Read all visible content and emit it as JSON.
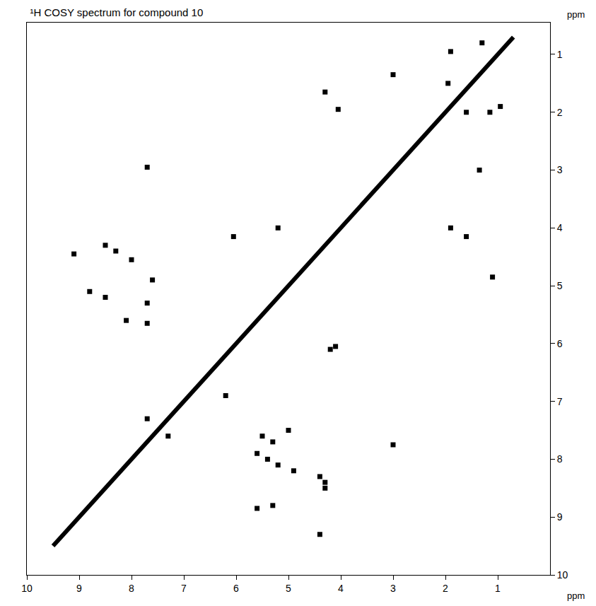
{
  "chart_data": {
    "type": "scatter",
    "title": "¹H COSY spectrum for compound 10",
    "xlabel": "ppm",
    "ylabel": "ppm",
    "xlim": [
      10,
      0
    ],
    "ylim": [
      10,
      0.45
    ],
    "xticks": [
      10,
      9,
      8,
      7,
      6,
      5,
      4,
      3,
      2,
      1
    ],
    "yticks": [
      1,
      2,
      3,
      4,
      5,
      6,
      7,
      8,
      9,
      10
    ],
    "grid": false,
    "series": [
      {
        "type": "line",
        "color": "#000000",
        "x": [
          9.5,
          9.2,
          8.5,
          8.3,
          8.0,
          7.8,
          7.5,
          7.2,
          7.0,
          6.8,
          6.5,
          6.2,
          5.7,
          5.3,
          5.0,
          4.7,
          4.4,
          4.0,
          3.5,
          3.0,
          2.5,
          1.9,
          1.3,
          0.9,
          0.7
        ],
        "values": [
          9.5,
          9.2,
          8.5,
          8.3,
          8.0,
          7.8,
          7.5,
          7.2,
          7.0,
          6.8,
          6.5,
          6.2,
          5.7,
          5.3,
          5.0,
          4.7,
          4.4,
          4.0,
          3.5,
          3.0,
          2.5,
          1.9,
          1.3,
          0.9,
          0.7
        ]
      },
      {
        "type": "scatter",
        "color": "#000000",
        "marker": "square",
        "x": [
          1.9,
          1.3,
          0.95,
          1.95,
          3.0,
          4.3,
          4.05,
          1.6,
          1.15,
          1.35,
          7.7,
          1.9,
          1.6,
          6.05,
          5.2,
          9.1,
          8.5,
          8.3,
          8.0,
          7.6,
          8.8,
          8.5,
          7.7,
          7.7,
          8.1,
          1.1,
          4.1,
          4.2,
          6.2,
          7.7,
          7.3,
          5.5,
          5.3,
          5.0,
          3.0,
          5.6,
          5.4,
          5.2,
          4.9,
          4.4,
          4.3,
          4.3,
          5.3,
          5.6,
          4.4
        ],
        "values": [
          0.95,
          0.8,
          1.9,
          1.5,
          1.35,
          1.65,
          1.95,
          2.0,
          2.0,
          3.0,
          2.95,
          4.0,
          4.15,
          4.15,
          4.0,
          4.45,
          4.3,
          4.4,
          4.55,
          4.9,
          5.1,
          5.2,
          5.3,
          5.65,
          5.6,
          4.85,
          6.05,
          6.1,
          6.9,
          7.3,
          7.6,
          7.6,
          7.7,
          7.5,
          7.75,
          7.9,
          8.0,
          8.1,
          8.2,
          8.3,
          8.5,
          8.4,
          8.8,
          8.85,
          9.3
        ]
      }
    ]
  }
}
